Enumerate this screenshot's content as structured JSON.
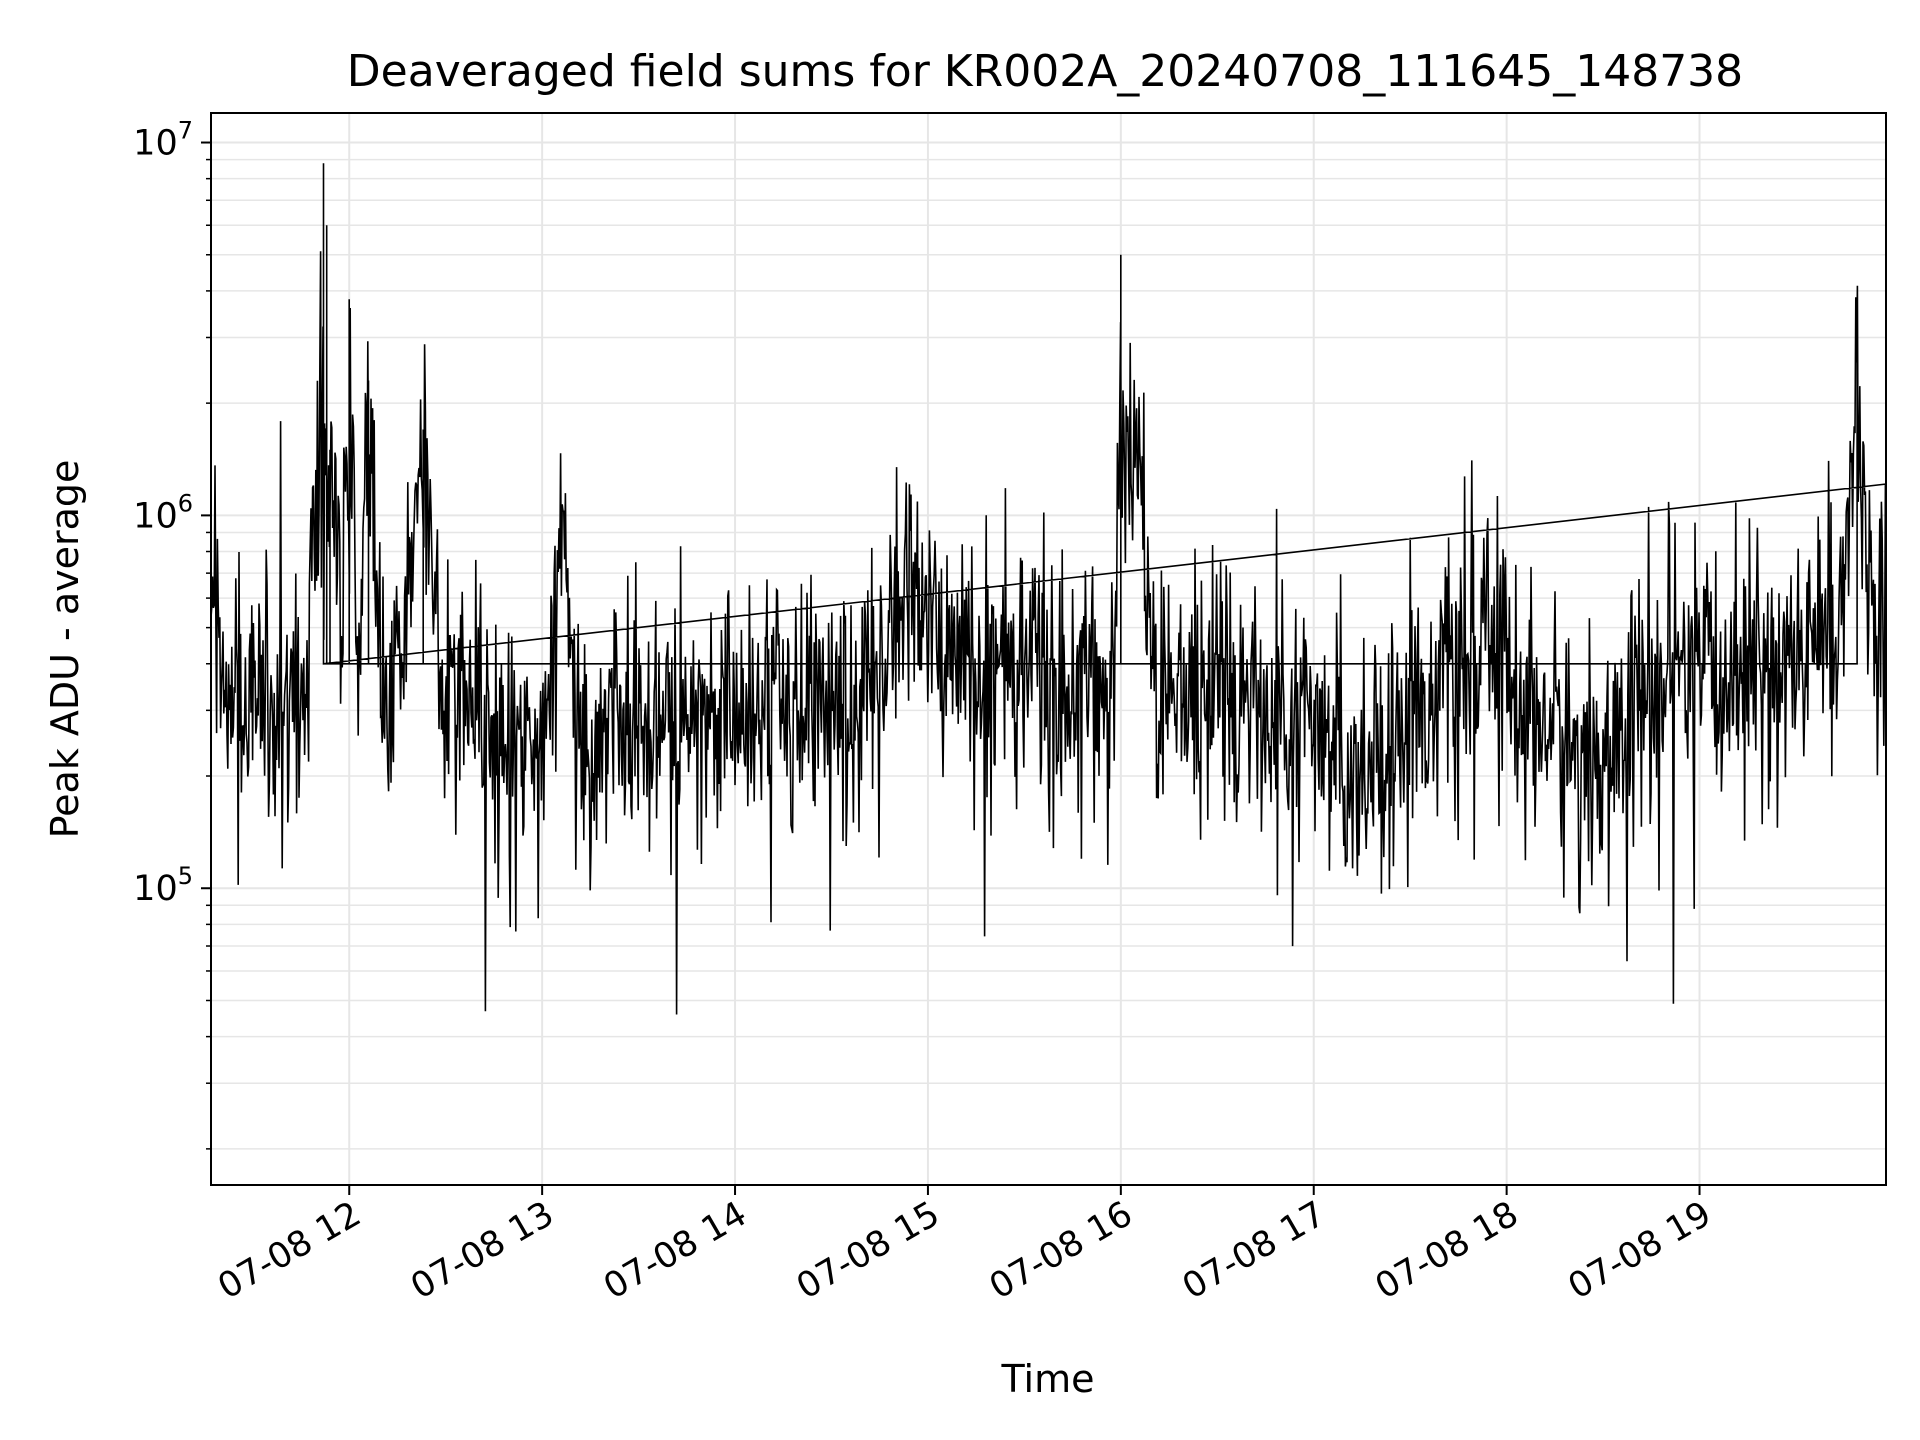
{
  "chart_data": {
    "type": "line",
    "title": "Deaveraged field sums for KR002A_20240708_111645_148738",
    "xlabel": "Time",
    "ylabel": "Peak ADU - average",
    "yscale": "log",
    "ylim": [
      16000,
      12000000
    ],
    "xlim": [
      "2024-07-08 11:17",
      "2024-07-08 19:58"
    ],
    "grid": true,
    "line_color": "#000000",
    "grid_color": "#e6e6e6",
    "x_ticks": [
      {
        "value": "2024-07-08 12:00",
        "label": "07-08 12"
      },
      {
        "value": "2024-07-08 13:00",
        "label": "07-08 13"
      },
      {
        "value": "2024-07-08 14:00",
        "label": "07-08 14"
      },
      {
        "value": "2024-07-08 15:00",
        "label": "07-08 15"
      },
      {
        "value": "2024-07-08 16:00",
        "label": "07-08 16"
      },
      {
        "value": "2024-07-08 17:00",
        "label": "07-08 17"
      },
      {
        "value": "2024-07-08 18:00",
        "label": "07-08 18"
      },
      {
        "value": "2024-07-08 19:00",
        "label": "07-08 19"
      }
    ],
    "y_ticks": [
      {
        "value": 100000,
        "base": "10",
        "exp": "5"
      },
      {
        "value": 1000000,
        "base": "10",
        "exp": "6"
      },
      {
        "value": 10000000,
        "base": "10",
        "exp": "7"
      }
    ],
    "series": [
      {
        "x": [
          "2024-07-08 11:17",
          "2024-07-08 11:23",
          "2024-07-08 11:26",
          "2024-07-08 11:29",
          "2024-07-08 11:35",
          "2024-07-08 11:40",
          "2024-07-08 11:43",
          "2024-07-08 11:47",
          "2024-07-08 11:52",
          "2024-07-08 11:53",
          "2024-07-08 11:54",
          "2024-07-08 11:58",
          "2024-07-08 12:00",
          "2024-07-08 12:03",
          "2024-07-08 12:06",
          "2024-07-08 12:10",
          "2024-07-08 12:16",
          "2024-07-08 12:23",
          "2024-07-08 12:30",
          "2024-07-08 12:40",
          "2024-07-08 12:50",
          "2024-07-08 13:00",
          "2024-07-08 13:07",
          "2024-07-08 13:10",
          "2024-07-08 13:13",
          "2024-07-08 13:25",
          "2024-07-08 13:40",
          "2024-07-08 13:55",
          "2024-07-08 14:10",
          "2024-07-08 14:25",
          "2024-07-08 14:40",
          "2024-07-08 14:45",
          "2024-07-08 14:55",
          "2024-07-08 15:07",
          "2024-07-08 15:15",
          "2024-07-08 15:25",
          "2024-07-08 15:40",
          "2024-07-08 15:52",
          "2024-07-08 15:58",
          "2024-07-08 16:00",
          "2024-07-08 16:10",
          "2024-07-08 16:20",
          "2024-07-08 16:30",
          "2024-07-08 16:45",
          "2024-07-08 16:55",
          "2024-07-08 17:05",
          "2024-07-08 17:14",
          "2024-07-08 17:20",
          "2024-07-08 17:30",
          "2024-07-08 17:45",
          "2024-07-08 17:57",
          "2024-07-08 18:05",
          "2024-07-08 18:15",
          "2024-07-08 18:25",
          "2024-07-08 18:32",
          "2024-07-08 18:40",
          "2024-07-08 18:50",
          "2024-07-08 19:00",
          "2024-07-08 19:12",
          "2024-07-08 19:25",
          "2024-07-08 19:35",
          "2024-07-08 19:45",
          "2024-07-08 19:49",
          "2024-07-08 19:52",
          "2024-07-08 19:58"
        ],
        "y": [
          600000,
          350000,
          350000,
          380000,
          250000,
          260000,
          300000,
          350000,
          8800000,
          6000000,
          1500000,
          420000,
          3800000,
          380000,
          2300000,
          350000,
          380000,
          1700000,
          320000,
          300000,
          280000,
          260000,
          900000,
          320000,
          230000,
          260000,
          300000,
          280000,
          320000,
          300000,
          300000,
          380000,
          650000,
          450000,
          400000,
          420000,
          350000,
          330000,
          320000,
          5000000,
          330000,
          350000,
          330000,
          300000,
          260000,
          230000,
          220000,
          230000,
          300000,
          380000,
          450000,
          320000,
          260000,
          210000,
          230000,
          300000,
          360000,
          360000,
          380000,
          400000,
          420000,
          600000,
          3300000,
          600000,
          500000
        ]
      }
    ]
  }
}
